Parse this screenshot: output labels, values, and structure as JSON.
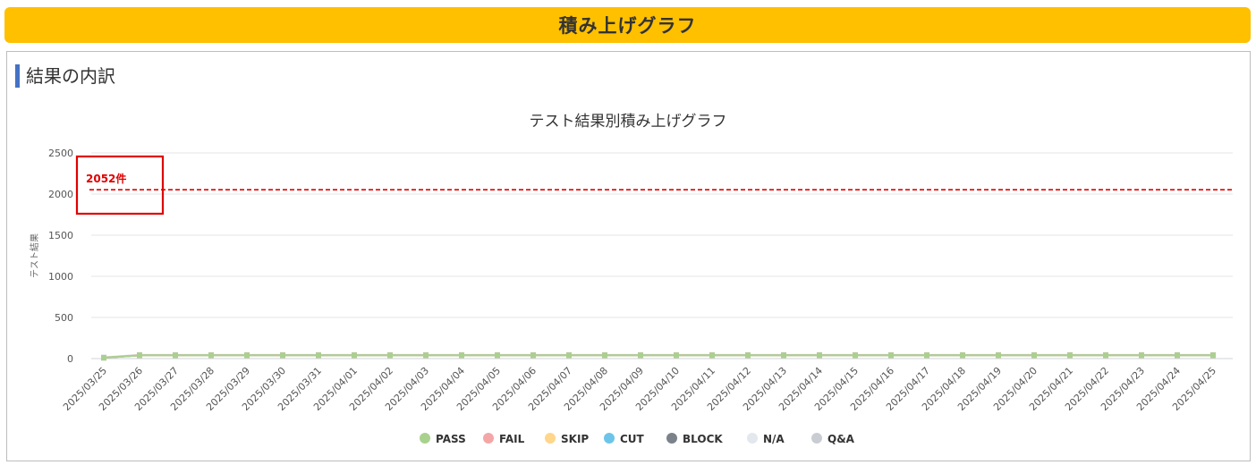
{
  "header": {
    "title": "積み上げグラフ"
  },
  "section": {
    "title": "結果の内訳"
  },
  "colors": {
    "header_bg": "#FFC000",
    "accent_bar": "#4472C4",
    "annotation": "#e00000"
  },
  "chart_data": {
    "type": "line",
    "title": "テスト結果別積み上げグラフ",
    "xlabel": "",
    "ylabel": "テスト結果",
    "ylim": [
      0,
      2500
    ],
    "yticks": [
      "0",
      "500",
      "1000",
      "1500",
      "2000",
      "2500"
    ],
    "grid": true,
    "legend_position": "bottom",
    "categories": [
      "2025/03/25",
      "2025/03/26",
      "2025/03/27",
      "2025/03/28",
      "2025/03/29",
      "2025/03/30",
      "2025/03/31",
      "2025/04/01",
      "2025/04/02",
      "2025/04/03",
      "2025/04/04",
      "2025/04/05",
      "2025/04/06",
      "2025/04/07",
      "2025/04/08",
      "2025/04/09",
      "2025/04/10",
      "2025/04/11",
      "2025/04/12",
      "2025/04/13",
      "2025/04/14",
      "2025/04/15",
      "2025/04/16",
      "2025/04/17",
      "2025/04/18",
      "2025/04/19",
      "2025/04/20",
      "2025/04/21",
      "2025/04/22",
      "2025/04/23",
      "2025/04/24",
      "2025/04/25"
    ],
    "series": [
      {
        "name": "PASS",
        "color": "#A9D18E",
        "values": [
          10,
          40,
          40,
          40,
          40,
          40,
          40,
          40,
          40,
          40,
          40,
          40,
          40,
          40,
          40,
          40,
          40,
          40,
          40,
          40,
          40,
          40,
          40,
          40,
          40,
          40,
          40,
          40,
          40,
          40,
          40,
          40
        ]
      },
      {
        "name": "FAIL",
        "color": "#F4A6A6",
        "values": [
          0,
          0,
          0,
          0,
          0,
          0,
          0,
          0,
          0,
          0,
          0,
          0,
          0,
          0,
          0,
          0,
          0,
          0,
          0,
          0,
          0,
          0,
          0,
          0,
          0,
          0,
          0,
          0,
          0,
          0,
          0,
          0
        ]
      },
      {
        "name": "SKIP",
        "color": "#FFD68A",
        "values": [
          0,
          0,
          0,
          0,
          0,
          0,
          0,
          0,
          0,
          0,
          0,
          0,
          0,
          0,
          0,
          0,
          0,
          0,
          0,
          0,
          0,
          0,
          0,
          0,
          0,
          0,
          0,
          0,
          0,
          0,
          0,
          0
        ]
      },
      {
        "name": "CUT",
        "color": "#6CC5E8",
        "values": [
          0,
          0,
          0,
          0,
          0,
          0,
          0,
          0,
          0,
          0,
          0,
          0,
          0,
          0,
          0,
          0,
          0,
          0,
          0,
          0,
          0,
          0,
          0,
          0,
          0,
          0,
          0,
          0,
          0,
          0,
          0,
          0
        ]
      },
      {
        "name": "BLOCK",
        "color": "#7B8289",
        "values": [
          0,
          0,
          0,
          0,
          0,
          0,
          0,
          0,
          0,
          0,
          0,
          0,
          0,
          0,
          0,
          0,
          0,
          0,
          0,
          0,
          0,
          0,
          0,
          0,
          0,
          0,
          0,
          0,
          0,
          0,
          0,
          0
        ]
      },
      {
        "name": "N/A",
        "color": "#E3E8EE",
        "values": [
          0,
          0,
          0,
          0,
          0,
          0,
          0,
          0,
          0,
          0,
          0,
          0,
          0,
          0,
          0,
          0,
          0,
          0,
          0,
          0,
          0,
          0,
          0,
          0,
          0,
          0,
          0,
          0,
          0,
          0,
          0,
          0
        ]
      },
      {
        "name": "Q&A",
        "color": "#C9CDD3",
        "values": [
          5,
          5,
          5,
          5,
          5,
          5,
          5,
          5,
          5,
          5,
          5,
          5,
          5,
          5,
          5,
          5,
          5,
          5,
          5,
          5,
          5,
          5,
          5,
          5,
          5,
          5,
          5,
          5,
          5,
          5,
          5,
          5
        ]
      }
    ],
    "reference_line": {
      "value": 2052,
      "label": "2052件",
      "color": "#e00000"
    }
  }
}
